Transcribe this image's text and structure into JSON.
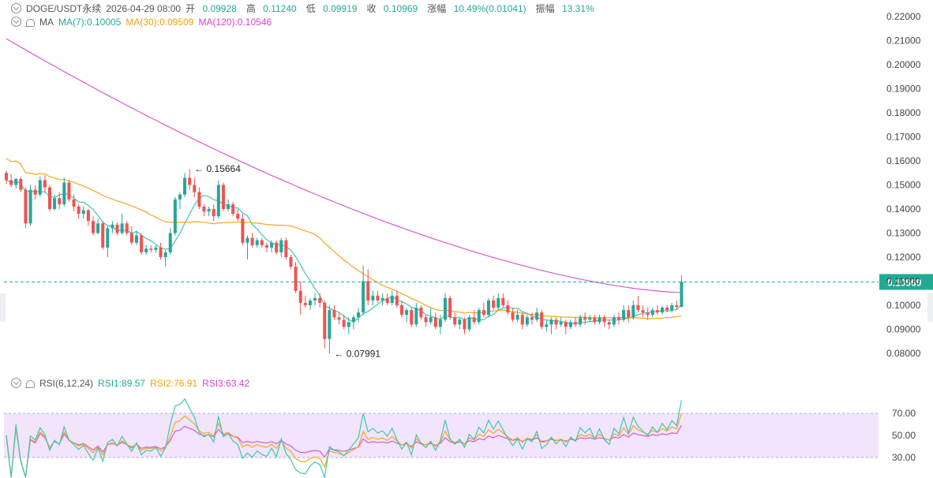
{
  "header": {
    "symbol": "DOGE/USDT永续",
    "datetime": "2026-04-29 08:00",
    "open_label": "开",
    "open": "0.09928",
    "high_label": "高",
    "high": "0.11240",
    "low_label": "低",
    "low": "0.09919",
    "close_label": "收",
    "close": "0.10969",
    "change_label": "涨幅",
    "change": "10.49%(0.01041)",
    "amp_label": "振幅",
    "amp": "13.31%"
  },
  "ma_legend": {
    "label": "MA",
    "ma7": "MA(7):0.10005",
    "ma30": "MA(30):0.09509",
    "ma120": "MA(120):0.10546"
  },
  "rsi_legend": {
    "label": "RSI(6,12,24)",
    "rsi1": "RSI1:89.57",
    "rsi2": "RSI2:76.91",
    "rsi3": "RSI3:63.42"
  },
  "colors": {
    "up": "#26a69a",
    "down": "#ef5350",
    "ma7": "#3ec7b0",
    "ma30": "#f5a623",
    "ma120": "#d65bd0",
    "rsi1": "#3ec7b0",
    "rsi2": "#f5a623",
    "rsi3": "#d65bd0",
    "price_tag": "#22ab94",
    "rsi_band": "#f1e4fb"
  },
  "chart_data": [
    {
      "type": "candlestick",
      "title": "DOGE/USDT永续",
      "y_ticks": [
        "0.22000",
        "0.21000",
        "0.20000",
        "0.19000",
        "0.18000",
        "0.17000",
        "0.16000",
        "0.15000",
        "0.14000",
        "0.13000",
        "0.12000",
        "0.11000",
        "0.10000",
        "0.09000",
        "0.08000"
      ],
      "ylim": [
        0.0775,
        0.2215
      ],
      "last_price": 0.10969,
      "last_price_label": "0.10969",
      "annotations": [
        {
          "label": "← 0.15664",
          "index": 38,
          "value": 0.15664
        },
        {
          "label": "← 0.07991",
          "index": 67,
          "value": 0.07991
        }
      ],
      "ohlc": [
        [
          0.155,
          0.156,
          0.1505,
          0.152
        ],
        [
          0.152,
          0.1545,
          0.149,
          0.15
        ],
        [
          0.15,
          0.153,
          0.1485,
          0.1525
        ],
        [
          0.1525,
          0.1535,
          0.147,
          0.148
        ],
        [
          0.148,
          0.149,
          0.132,
          0.134
        ],
        [
          0.134,
          0.15,
          0.133,
          0.148
        ],
        [
          0.148,
          0.15,
          0.144,
          0.146
        ],
        [
          0.146,
          0.1535,
          0.145,
          0.152
        ],
        [
          0.152,
          0.154,
          0.147,
          0.149
        ],
        [
          0.149,
          0.15,
          0.139,
          0.14
        ],
        [
          0.14,
          0.146,
          0.1395,
          0.1445
        ],
        [
          0.1445,
          0.147,
          0.14,
          0.142
        ],
        [
          0.142,
          0.153,
          0.141,
          0.151
        ],
        [
          0.151,
          0.152,
          0.143,
          0.144
        ],
        [
          0.144,
          0.146,
          0.139,
          0.141
        ],
        [
          0.141,
          0.142,
          0.136,
          0.138
        ],
        [
          0.138,
          0.141,
          0.136,
          0.1395
        ],
        [
          0.1395,
          0.14,
          0.133,
          0.135
        ],
        [
          0.135,
          0.137,
          0.129,
          0.13
        ],
        [
          0.13,
          0.136,
          0.1295,
          0.134
        ],
        [
          0.134,
          0.135,
          0.123,
          0.124
        ],
        [
          0.124,
          0.133,
          0.12,
          0.132
        ],
        [
          0.132,
          0.135,
          0.13,
          0.1335
        ],
        [
          0.1335,
          0.1345,
          0.129,
          0.13
        ],
        [
          0.13,
          0.138,
          0.1295,
          0.134
        ],
        [
          0.134,
          0.135,
          0.129,
          0.13
        ],
        [
          0.13,
          0.133,
          0.125,
          0.126
        ],
        [
          0.126,
          0.131,
          0.125,
          0.129
        ],
        [
          0.129,
          0.13,
          0.121,
          0.122
        ],
        [
          0.122,
          0.125,
          0.121,
          0.1235
        ],
        [
          0.1235,
          0.125,
          0.122,
          0.123
        ],
        [
          0.123,
          0.125,
          0.122,
          0.124
        ],
        [
          0.124,
          0.126,
          0.119,
          0.12
        ],
        [
          0.12,
          0.123,
          0.116,
          0.122
        ],
        [
          0.122,
          0.132,
          0.121,
          0.13
        ],
        [
          0.13,
          0.145,
          0.129,
          0.144
        ],
        [
          0.144,
          0.147,
          0.14,
          0.146
        ],
        [
          0.146,
          0.155,
          0.145,
          0.153
        ],
        [
          0.153,
          0.1566,
          0.148,
          0.15
        ],
        [
          0.15,
          0.153,
          0.145,
          0.147
        ],
        [
          0.147,
          0.149,
          0.14,
          0.141
        ],
        [
          0.141,
          0.142,
          0.137,
          0.139
        ],
        [
          0.139,
          0.141,
          0.137,
          0.14
        ],
        [
          0.14,
          0.142,
          0.135,
          0.137
        ],
        [
          0.137,
          0.152,
          0.136,
          0.15
        ],
        [
          0.15,
          0.151,
          0.139,
          0.14
        ],
        [
          0.14,
          0.144,
          0.139,
          0.142
        ],
        [
          0.142,
          0.143,
          0.137,
          0.138
        ],
        [
          0.138,
          0.14,
          0.135,
          0.136
        ],
        [
          0.136,
          0.138,
          0.125,
          0.126
        ],
        [
          0.126,
          0.129,
          0.119,
          0.128
        ],
        [
          0.128,
          0.13,
          0.124,
          0.125
        ],
        [
          0.125,
          0.128,
          0.124,
          0.127
        ],
        [
          0.127,
          0.128,
          0.124,
          0.125
        ],
        [
          0.125,
          0.126,
          0.122,
          0.124
        ],
        [
          0.124,
          0.127,
          0.122,
          0.126
        ],
        [
          0.126,
          0.127,
          0.121,
          0.122
        ],
        [
          0.122,
          0.128,
          0.12,
          0.127
        ],
        [
          0.127,
          0.128,
          0.119,
          0.12
        ],
        [
          0.12,
          0.121,
          0.115,
          0.116
        ],
        [
          0.116,
          0.118,
          0.105,
          0.106
        ],
        [
          0.106,
          0.11,
          0.096,
          0.101
        ],
        [
          0.101,
          0.104,
          0.099,
          0.1
        ],
        [
          0.1,
          0.103,
          0.098,
          0.102
        ],
        [
          0.102,
          0.105,
          0.1,
          0.103
        ],
        [
          0.103,
          0.105,
          0.099,
          0.101
        ],
        [
          0.101,
          0.102,
          0.082,
          0.086
        ],
        [
          0.086,
          0.1,
          0.0799,
          0.098
        ],
        [
          0.098,
          0.1,
          0.094,
          0.095
        ],
        [
          0.095,
          0.097,
          0.092,
          0.094
        ],
        [
          0.094,
          0.096,
          0.09,
          0.091
        ],
        [
          0.091,
          0.095,
          0.088,
          0.093
        ],
        [
          0.093,
          0.096,
          0.09,
          0.095
        ],
        [
          0.095,
          0.099,
          0.093,
          0.097
        ],
        [
          0.097,
          0.1165,
          0.096,
          0.11
        ],
        [
          0.11,
          0.115,
          0.1,
          0.102
        ],
        [
          0.102,
          0.106,
          0.1,
          0.104
        ],
        [
          0.104,
          0.106,
          0.101,
          0.102
        ],
        [
          0.102,
          0.105,
          0.1,
          0.103
        ],
        [
          0.103,
          0.105,
          0.1,
          0.101
        ],
        [
          0.101,
          0.106,
          0.1,
          0.104
        ],
        [
          0.104,
          0.106,
          0.099,
          0.1
        ],
        [
          0.1,
          0.102,
          0.095,
          0.096
        ],
        [
          0.096,
          0.099,
          0.093,
          0.098
        ],
        [
          0.098,
          0.099,
          0.091,
          0.092
        ],
        [
          0.092,
          0.101,
          0.091,
          0.099
        ],
        [
          0.099,
          0.1,
          0.094,
          0.095
        ],
        [
          0.095,
          0.096,
          0.091,
          0.093
        ],
        [
          0.093,
          0.099,
          0.092,
          0.095
        ],
        [
          0.095,
          0.097,
          0.09,
          0.091
        ],
        [
          0.091,
          0.096,
          0.088,
          0.094
        ],
        [
          0.094,
          0.105,
          0.093,
          0.103
        ],
        [
          0.103,
          0.104,
          0.094,
          0.095
        ],
        [
          0.095,
          0.097,
          0.091,
          0.092
        ],
        [
          0.092,
          0.095,
          0.09,
          0.094
        ],
        [
          0.094,
          0.095,
          0.088,
          0.09
        ],
        [
          0.09,
          0.096,
          0.089,
          0.095
        ],
        [
          0.095,
          0.098,
          0.092,
          0.093
        ],
        [
          0.093,
          0.099,
          0.092,
          0.098
        ],
        [
          0.098,
          0.101,
          0.095,
          0.096
        ],
        [
          0.096,
          0.103,
          0.095,
          0.102
        ],
        [
          0.102,
          0.104,
          0.098,
          0.099
        ],
        [
          0.099,
          0.105,
          0.098,
          0.103
        ],
        [
          0.103,
          0.105,
          0.099,
          0.1
        ],
        [
          0.1,
          0.102,
          0.096,
          0.097
        ],
        [
          0.097,
          0.099,
          0.093,
          0.094
        ],
        [
          0.094,
          0.098,
          0.093,
          0.096
        ],
        [
          0.096,
          0.097,
          0.09,
          0.092
        ],
        [
          0.092,
          0.096,
          0.091,
          0.095
        ],
        [
          0.095,
          0.097,
          0.092,
          0.094
        ],
        [
          0.094,
          0.099,
          0.093,
          0.097
        ],
        [
          0.097,
          0.098,
          0.09,
          0.091
        ],
        [
          0.091,
          0.094,
          0.089,
          0.092
        ],
        [
          0.092,
          0.095,
          0.088,
          0.094
        ],
        [
          0.094,
          0.095,
          0.09,
          0.092
        ],
        [
          0.092,
          0.095,
          0.091,
          0.093
        ],
        [
          0.093,
          0.094,
          0.088,
          0.091
        ],
        [
          0.091,
          0.094,
          0.09,
          0.093
        ],
        [
          0.093,
          0.095,
          0.091,
          0.092
        ],
        [
          0.092,
          0.096,
          0.091,
          0.095
        ],
        [
          0.095,
          0.097,
          0.092,
          0.094
        ],
        [
          0.094,
          0.096,
          0.093,
          0.095
        ],
        [
          0.095,
          0.096,
          0.092,
          0.093
        ],
        [
          0.093,
          0.096,
          0.092,
          0.095
        ],
        [
          0.095,
          0.096,
          0.091,
          0.093
        ],
        [
          0.093,
          0.094,
          0.09,
          0.092
        ],
        [
          0.092,
          0.096,
          0.091,
          0.095
        ],
        [
          0.095,
          0.097,
          0.092,
          0.094
        ],
        [
          0.094,
          0.1,
          0.093,
          0.098
        ],
        [
          0.098,
          0.1,
          0.093,
          0.095
        ],
        [
          0.095,
          0.102,
          0.094,
          0.1
        ],
        [
          0.1,
          0.104,
          0.097,
          0.098
        ],
        [
          0.098,
          0.1,
          0.095,
          0.097
        ],
        [
          0.097,
          0.099,
          0.094,
          0.096
        ],
        [
          0.096,
          0.099,
          0.095,
          0.098
        ],
        [
          0.098,
          0.1,
          0.096,
          0.097
        ],
        [
          0.097,
          0.1,
          0.096,
          0.099
        ],
        [
          0.099,
          0.1,
          0.097,
          0.098
        ],
        [
          0.098,
          0.101,
          0.097,
          0.1
        ],
        [
          0.1,
          0.102,
          0.098,
          0.0993
        ],
        [
          0.0993,
          0.1124,
          0.0992,
          0.1097
        ]
      ]
    },
    {
      "type": "line",
      "title": "RSI(6,12,24)",
      "y_ticks": [
        "70.00",
        "50.00",
        "30.00"
      ],
      "ylim": [
        12,
        100
      ],
      "band": [
        30,
        70
      ],
      "series_from": "candlestick closes (periods 6, 12, 24)"
    }
  ]
}
